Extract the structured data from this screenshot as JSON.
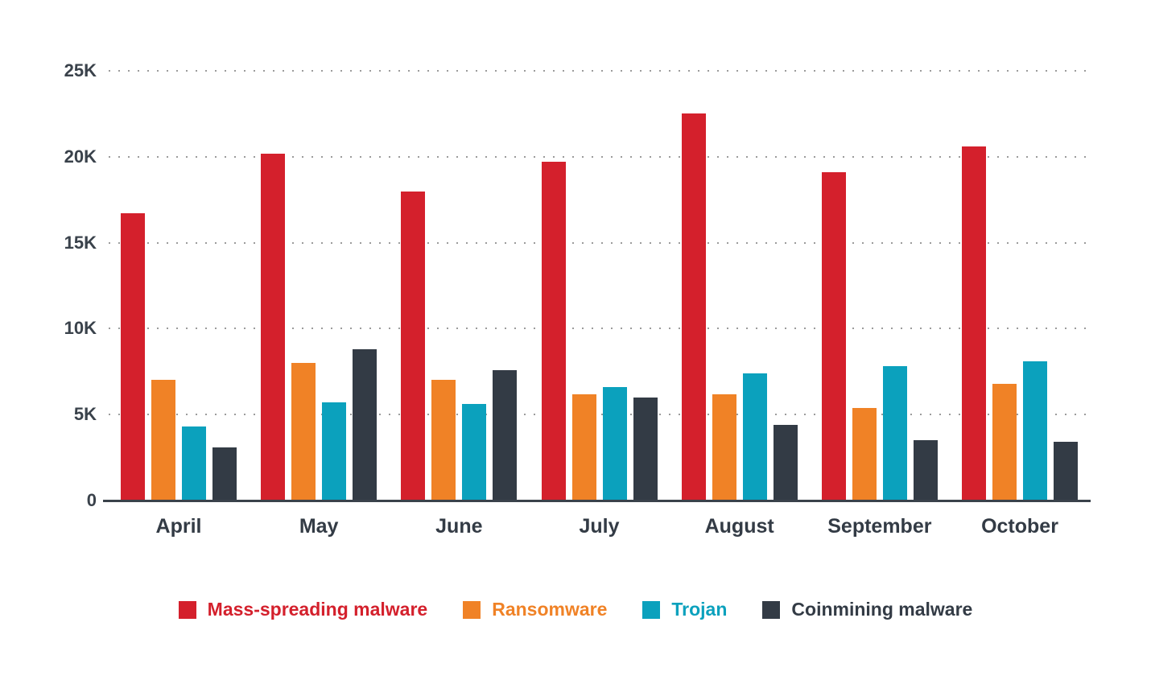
{
  "chart_data": {
    "type": "bar",
    "title": "",
    "categories": [
      "April",
      "May",
      "June",
      "July",
      "August",
      "September",
      "October"
    ],
    "series": [
      {
        "name": "Mass-spreading malware",
        "color": "#d4202c",
        "values": [
          16700,
          20200,
          18000,
          19700,
          22500,
          19100,
          20600
        ]
      },
      {
        "name": "Ransomware",
        "color": "#f08226",
        "values": [
          7000,
          8000,
          7000,
          6200,
          6200,
          5400,
          6800
        ]
      },
      {
        "name": "Trojan",
        "color": "#0ba1bd",
        "values": [
          4300,
          5700,
          5600,
          6600,
          7400,
          7800,
          8100
        ]
      },
      {
        "name": "Coinmining malware",
        "color": "#333b45",
        "values": [
          3100,
          8800,
          7600,
          6000,
          4400,
          3500,
          3400
        ]
      }
    ],
    "ylim": [
      0,
      25000
    ],
    "y_ticks": [
      {
        "value": 0,
        "label": "0"
      },
      {
        "value": 5000,
        "label": "5K"
      },
      {
        "value": 10000,
        "label": "10K"
      },
      {
        "value": 15000,
        "label": "15K"
      },
      {
        "value": 20000,
        "label": "20K"
      },
      {
        "value": 25000,
        "label": "25K"
      }
    ],
    "grid": "dotted horizontal gridlines at each 5K tick",
    "legend_position": "bottom",
    "axis_text_color": "#3a424b",
    "gridline_color": "#9b9b9b",
    "axis_line_color": "#3a424b"
  }
}
